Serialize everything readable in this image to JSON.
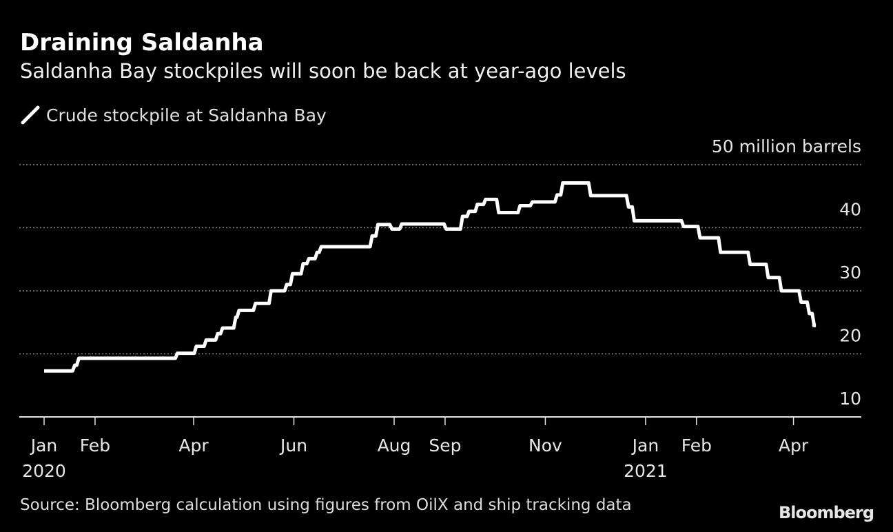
{
  "header": {
    "title": "Draining Saldanha",
    "subtitle": "Saldanha Bay stockpiles will soon be back at year-ago levels"
  },
  "legend": {
    "label": "Crude stockpile at Saldanha Bay",
    "color": "#ffffff"
  },
  "footer": {
    "source": "Source: Bloomberg calculation using figures from OilX and ship tracking data",
    "logo": "Bloomberg"
  },
  "chart_data": {
    "type": "line",
    "title": "Draining Saldanha",
    "ylabel": "million barrels",
    "ylim": [
      10,
      50
    ],
    "yticks": [
      {
        "value": 10,
        "label": "10"
      },
      {
        "value": 20,
        "label": "20"
      },
      {
        "value": 30,
        "label": "30"
      },
      {
        "value": 40,
        "label": "40"
      },
      {
        "value": 50,
        "label": "50 million barrels"
      }
    ],
    "x_unit": "days since 2020-01-01",
    "xlim": [
      -15,
      505
    ],
    "xticks": [
      {
        "day": 0,
        "label": "Jan",
        "year": "2020"
      },
      {
        "day": 31,
        "label": "Feb",
        "year": ""
      },
      {
        "day": 91,
        "label": "Apr",
        "year": ""
      },
      {
        "day": 152,
        "label": "Jun",
        "year": ""
      },
      {
        "day": 213,
        "label": "Aug",
        "year": ""
      },
      {
        "day": 244,
        "label": "Sep",
        "year": ""
      },
      {
        "day": 305,
        "label": "Nov",
        "year": ""
      },
      {
        "day": 366,
        "label": "Jan",
        "year": "2021"
      },
      {
        "day": 397,
        "label": "Feb",
        "year": ""
      },
      {
        "day": 456,
        "label": "Apr",
        "year": ""
      }
    ],
    "grid": true,
    "series": [
      {
        "name": "Crude stockpile at Saldanha Bay",
        "step": true,
        "x": [
          0,
          18,
          20.5,
          80.5,
          92,
          98,
          105,
          108,
          116,
          118,
          128,
          137.5,
          147,
          150.5,
          157,
          160.5,
          165.5,
          168,
          199,
          202.5,
          211,
          217,
          244,
          254,
          258,
          263,
          268,
          276,
          289,
          296.5,
          311.5,
          315,
          332,
          355,
          358.5,
          388.5,
          398.5,
          411,
          429,
          440,
          448,
          460,
          465,
          468,
          469
        ],
        "y": [
          17.3,
          18.2,
          19.3,
          20.1,
          21.2,
          22.2,
          23.2,
          24.1,
          25.8,
          26.9,
          28.0,
          30.0,
          31.0,
          32.7,
          34.3,
          35.1,
          36.1,
          37.0,
          38.7,
          40.5,
          39.8,
          40.6,
          39.8,
          41.8,
          42.6,
          43.7,
          44.5,
          42.4,
          43.5,
          44.1,
          45.2,
          47.1,
          45.1,
          43.3,
          41.1,
          40.2,
          38.4,
          36.1,
          34.2,
          32.1,
          30.0,
          28.2,
          26.4,
          24.5,
          24.5
        ]
      }
    ]
  }
}
